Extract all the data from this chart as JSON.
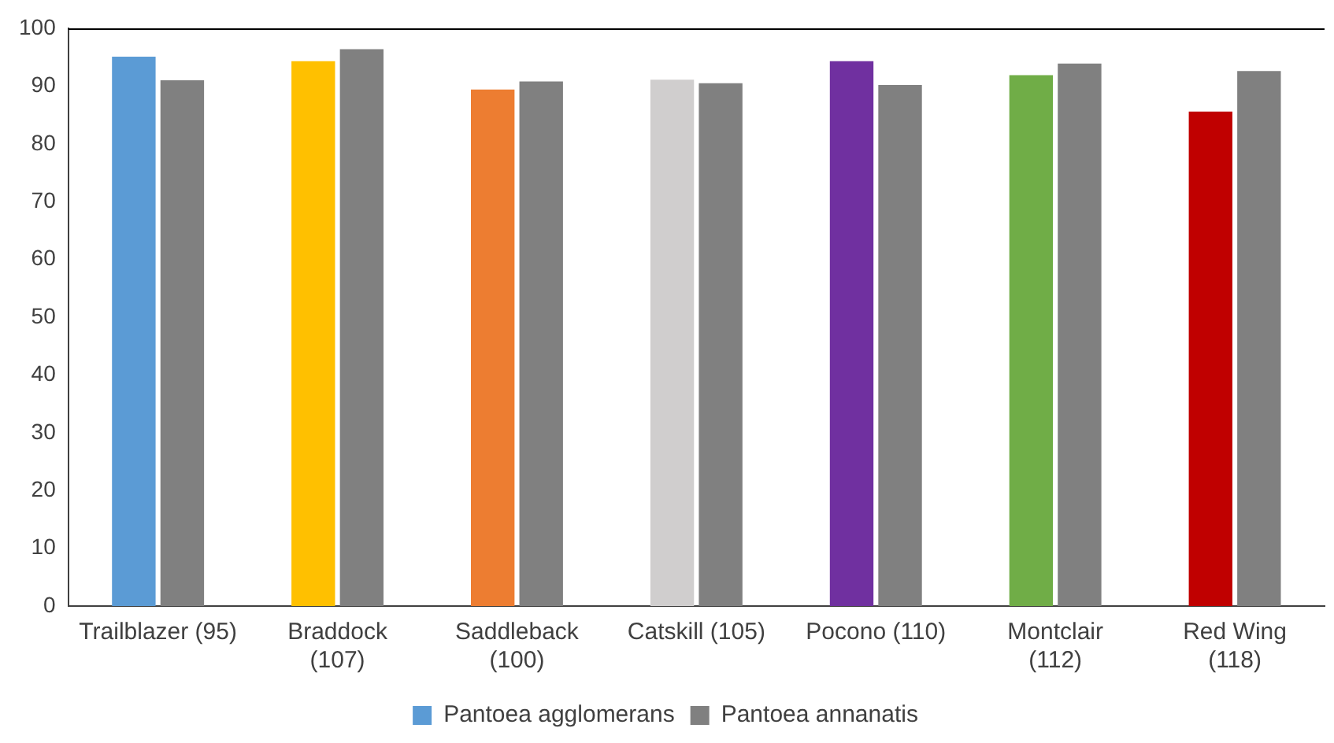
{
  "chart_data": {
    "type": "bar",
    "categories": [
      "Trailblazer (95)",
      "Braddock\n(107)",
      "Saddleback\n(100)",
      "Catskill (105)",
      "Pocono (110)",
      "Montclair\n(112)",
      "Red Wing\n(118)"
    ],
    "series": [
      {
        "name": "Pantoea agglomerans",
        "colors": [
          "#5b9bd5",
          "#ffc000",
          "#ed7d31",
          "#d0cece",
          "#7030a0",
          "#70ad47",
          "#c00000"
        ],
        "values": [
          95.1,
          94.3,
          89.4,
          91.1,
          94.3,
          91.9,
          85.6
        ]
      },
      {
        "name": "Pantoea annanatis",
        "color": "#808080",
        "values": [
          91.0,
          96.4,
          90.8,
          90.5,
          90.2,
          93.9,
          92.6
        ]
      }
    ],
    "ylim": [
      0,
      100
    ],
    "yticks": [
      0,
      10,
      20,
      30,
      40,
      50,
      60,
      70,
      80,
      90,
      100
    ],
    "grid": false,
    "legend": "bottom"
  }
}
